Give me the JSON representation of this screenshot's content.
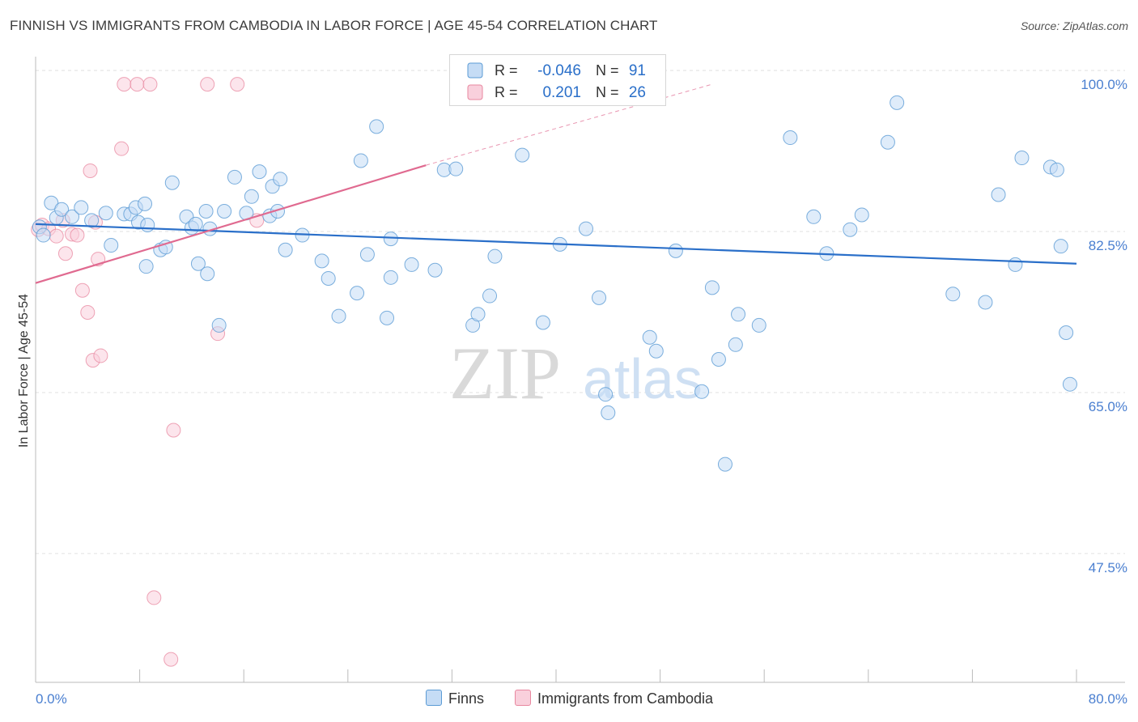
{
  "title": "FINNISH VS IMMIGRANTS FROM CAMBODIA IN LABOR FORCE | AGE 45-54 CORRELATION CHART",
  "source": "Source: ZipAtlas.com",
  "watermark": {
    "zip": "ZIP",
    "atlas": "atlas"
  },
  "legend_stats": [
    {
      "r_label": "R =",
      "r_value": "-0.046",
      "n_label": "N =",
      "n_value": "91"
    },
    {
      "r_label": "R =",
      "r_value": "0.201",
      "n_label": "N =",
      "n_value": "26"
    }
  ],
  "colors": {
    "finns": "#5b9bd5",
    "finns_fill": "#c5dcf5",
    "finns_line": "#2a6fc9",
    "cambodia": "#e8879f",
    "cambodia_fill": "#f9d0dc",
    "cambodia_line": "#e06a90",
    "tick_label": "#4a7fd0"
  },
  "chart_data": {
    "type": "scatter",
    "xlabel": "",
    "ylabel": "In Labor Force | Age 45-54",
    "xlim": [
      0,
      80
    ],
    "ylim": [
      35,
      103
    ],
    "x_tick_labels": [
      "0.0%",
      "80.0%"
    ],
    "y_ticks": [
      47.5,
      65.0,
      82.5,
      100.0
    ],
    "y_tick_labels": [
      "47.5%",
      "65.0%",
      "82.5%",
      "100.0%"
    ],
    "grid": "horizontal dashed",
    "legend": "bottom-center",
    "series": [
      {
        "name": "Finns",
        "trend": {
          "x0": 0,
          "y0": 84.8,
          "x1": 80,
          "y1": 80.5
        },
        "points": [
          [
            0.3,
            84.5
          ],
          [
            0.6,
            83.6
          ],
          [
            1.2,
            87.1
          ],
          [
            1.6,
            85.5
          ],
          [
            2.0,
            86.4
          ],
          [
            2.8,
            85.6
          ],
          [
            3.5,
            86.6
          ],
          [
            4.3,
            85.2
          ],
          [
            5.4,
            86.0
          ],
          [
            5.8,
            82.5
          ],
          [
            6.8,
            85.9
          ],
          [
            7.3,
            85.9
          ],
          [
            7.7,
            86.6
          ],
          [
            7.9,
            85.0
          ],
          [
            8.4,
            87.0
          ],
          [
            8.5,
            80.2
          ],
          [
            8.6,
            84.7
          ],
          [
            9.6,
            82.0
          ],
          [
            10.0,
            82.3
          ],
          [
            10.5,
            89.3
          ],
          [
            11.6,
            85.6
          ],
          [
            12.0,
            84.4
          ],
          [
            12.3,
            84.8
          ],
          [
            12.5,
            80.5
          ],
          [
            13.1,
            86.2
          ],
          [
            13.2,
            79.4
          ],
          [
            13.4,
            84.3
          ],
          [
            14.1,
            73.8
          ],
          [
            14.5,
            86.2
          ],
          [
            15.3,
            89.9
          ],
          [
            16.2,
            86.0
          ],
          [
            16.6,
            87.8
          ],
          [
            17.2,
            90.5
          ],
          [
            18.0,
            85.7
          ],
          [
            18.2,
            88.9
          ],
          [
            18.6,
            86.2
          ],
          [
            18.8,
            89.7
          ],
          [
            19.2,
            82.0
          ],
          [
            20.5,
            83.6
          ],
          [
            22.0,
            80.8
          ],
          [
            22.5,
            78.9
          ],
          [
            23.3,
            74.8
          ],
          [
            24.7,
            77.3
          ],
          [
            25.0,
            91.7
          ],
          [
            25.5,
            81.5
          ],
          [
            26.2,
            95.4
          ],
          [
            27.0,
            74.6
          ],
          [
            27.3,
            79.0
          ],
          [
            27.3,
            83.2
          ],
          [
            28.9,
            80.4
          ],
          [
            30.7,
            79.8
          ],
          [
            31.4,
            90.7
          ],
          [
            32.3,
            90.8
          ],
          [
            33.6,
            73.8
          ],
          [
            34.0,
            75.0
          ],
          [
            34.9,
            77.0
          ],
          [
            35.3,
            81.3
          ],
          [
            37.4,
            92.3
          ],
          [
            39.0,
            74.1
          ],
          [
            40.3,
            82.6
          ],
          [
            42.3,
            84.3
          ],
          [
            43.3,
            76.8
          ],
          [
            43.8,
            66.3
          ],
          [
            44.0,
            64.3
          ],
          [
            47.2,
            72.5
          ],
          [
            47.7,
            71.0
          ],
          [
            49.2,
            81.9
          ],
          [
            51.2,
            66.6
          ],
          [
            52.0,
            77.9
          ],
          [
            52.5,
            70.1
          ],
          [
            53.0,
            58.7
          ],
          [
            53.8,
            71.7
          ],
          [
            54.0,
            75.0
          ],
          [
            55.6,
            73.8
          ],
          [
            58.0,
            94.2
          ],
          [
            59.8,
            85.6
          ],
          [
            60.8,
            81.6
          ],
          [
            62.6,
            84.2
          ],
          [
            63.5,
            85.8
          ],
          [
            65.5,
            93.7
          ],
          [
            66.2,
            98.0
          ],
          [
            70.5,
            77.2
          ],
          [
            73.0,
            76.3
          ],
          [
            74.0,
            88.0
          ],
          [
            75.3,
            80.4
          ],
          [
            75.8,
            92.0
          ],
          [
            78.0,
            91.0
          ],
          [
            78.5,
            90.7
          ],
          [
            78.8,
            82.4
          ],
          [
            79.2,
            73.0
          ],
          [
            79.5,
            67.4
          ]
        ]
      },
      {
        "name": "Immigrants from Cambodia",
        "trend": {
          "x0": 0,
          "y0": 78.4,
          "x1": 30,
          "y1": 91.2
        },
        "trend_extension": {
          "x0": 30,
          "y0": 91.2,
          "x1": 52,
          "y1": 100.0
        },
        "points": [
          [
            0.2,
            84.2
          ],
          [
            0.5,
            84.7
          ],
          [
            1.0,
            84.3
          ],
          [
            1.6,
            83.5
          ],
          [
            2.1,
            85.2
          ],
          [
            2.3,
            81.6
          ],
          [
            2.8,
            83.7
          ],
          [
            3.2,
            83.6
          ],
          [
            3.6,
            77.6
          ],
          [
            4.0,
            75.2
          ],
          [
            4.2,
            90.6
          ],
          [
            4.4,
            70.0
          ],
          [
            4.6,
            85.0
          ],
          [
            4.8,
            81.0
          ],
          [
            5.0,
            70.5
          ],
          [
            6.6,
            93.0
          ],
          [
            6.8,
            100.0
          ],
          [
            7.8,
            100.0
          ],
          [
            8.8,
            100.0
          ],
          [
            9.1,
            44.2
          ],
          [
            10.4,
            37.5
          ],
          [
            10.6,
            62.4
          ],
          [
            13.2,
            100.0
          ],
          [
            14.0,
            72.9
          ],
          [
            15.5,
            100.0
          ],
          [
            17.0,
            85.2
          ]
        ]
      }
    ]
  },
  "bottom_legend": [
    {
      "label": "Finns"
    },
    {
      "label": "Immigrants from Cambodia"
    }
  ]
}
